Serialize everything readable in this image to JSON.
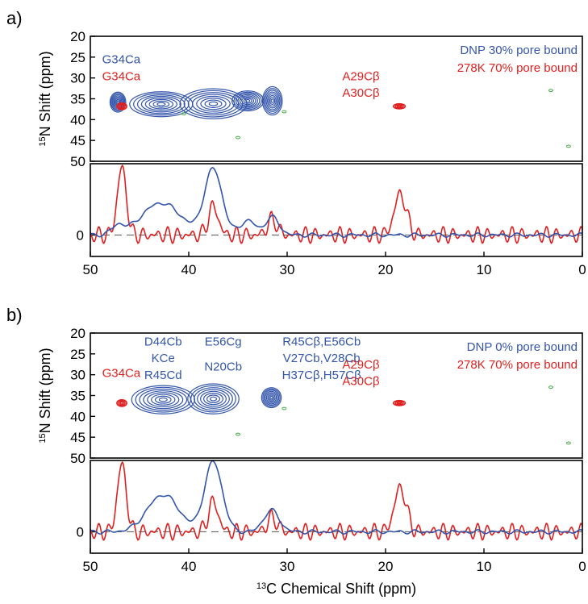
{
  "chart_data": [
    {
      "panel_label": "a)",
      "type": "heatmap",
      "subtype": "2D NMR contour spectrum",
      "xlabel": "",
      "ylabel": "15N Shift (ppm)",
      "ylabel_sup": "15",
      "ylabel_rest": "N Shift  (ppm)",
      "xlim": [
        50,
        0
      ],
      "ylim": [
        20,
        50
      ],
      "y_ticks": [
        "20",
        "25",
        "30",
        "35",
        "40",
        "45",
        "50"
      ],
      "legend": [
        "DNP 30% pore bound",
        "278K 70% pore bound"
      ],
      "legend_colors": [
        "#3355aa",
        "#e02020"
      ],
      "series": [
        {
          "name": "DNP 30% pore bound",
          "color": "#3355aa",
          "peaks": [
            {
              "x": 47.2,
              "y": 35.8,
              "w": 0.8,
              "h": 2.4
            },
            {
              "x": 42.8,
              "y": 36.3,
              "w": 3.2,
              "h": 3.0
            },
            {
              "x": 37.5,
              "y": 36.2,
              "w": 3.4,
              "h": 3.6
            },
            {
              "x": 34.0,
              "y": 35.5,
              "w": 1.6,
              "h": 2.4
            },
            {
              "x": 31.5,
              "y": 35.5,
              "w": 1.0,
              "h": 3.4
            }
          ]
        },
        {
          "name": "278K 70% pore bound",
          "color": "#e02020",
          "peaks": [
            {
              "x": 46.8,
              "y": 36.8,
              "w": 0.5,
              "h": 0.8
            },
            {
              "x": 18.6,
              "y": 36.8,
              "w": 0.6,
              "h": 0.6
            }
          ]
        }
      ],
      "annotations": [
        {
          "text": "G34Ca",
          "color": "#3355aa",
          "x": 48.8,
          "y": 26.5
        },
        {
          "text": "G34Ca",
          "color": "#e02020",
          "x": 48.8,
          "y": 30.5
        },
        {
          "text": "A29Cβ",
          "color": "#e02020",
          "x": 22.5,
          "y": 30.5
        },
        {
          "text": "A30Cβ",
          "color": "#e02020",
          "x": 22.5,
          "y": 34.5
        }
      ]
    },
    {
      "panel_label": "",
      "type": "line",
      "subtype": "1D projection",
      "xlabel": "",
      "ylabel": "",
      "xlim": [
        50,
        0
      ],
      "ylim": [
        -0.3,
        1.0
      ],
      "x_ticks": [
        "50",
        "40",
        "30",
        "20",
        "10",
        "0"
      ],
      "y_ticks": [
        "0"
      ],
      "series": [
        {
          "name": "",
          "color": "#e02020",
          "peaks": [
            [
              46.8,
              0.95,
              0.45
            ],
            [
              37.5,
              0.4,
              0.5
            ],
            [
              31.5,
              0.22,
              0.5
            ],
            [
              18.5,
              0.58,
              0.6
            ]
          ],
          "ripple": [
            0.12,
            0.5
          ]
        },
        {
          "name": "",
          "color": "#3355aa",
          "peaks": [
            [
              47.2,
              0.12,
              0.6
            ],
            [
              42.8,
              0.45,
              2.0
            ],
            [
              37.5,
              0.92,
              0.9
            ],
            [
              34.0,
              0.2,
              0.8
            ],
            [
              31.5,
              0.25,
              0.7
            ]
          ],
          "ripple": [
            0.03,
            0.8
          ]
        }
      ]
    },
    {
      "panel_label": "b)",
      "type": "heatmap",
      "subtype": "2D NMR contour spectrum",
      "xlabel": "",
      "ylabel": "15N Shift (ppm)",
      "ylabel_sup": "15",
      "ylabel_rest": "N Shift  (ppm)",
      "xlim": [
        50,
        0
      ],
      "ylim": [
        20,
        50
      ],
      "y_ticks": [
        "20",
        "25",
        "30",
        "35",
        "40",
        "45",
        "50"
      ],
      "legend": [
        "DNP 0% pore bound",
        "278K 70% pore bound"
      ],
      "legend_colors": [
        "#3355aa",
        "#e02020"
      ],
      "series": [
        {
          "name": "DNP 0% pore bound",
          "color": "#3355aa",
          "peaks": [
            {
              "x": 42.6,
              "y": 36.0,
              "w": 3.2,
              "h": 3.4
            },
            {
              "x": 37.5,
              "y": 35.8,
              "w": 2.6,
              "h": 3.6
            },
            {
              "x": 31.6,
              "y": 35.5,
              "w": 1.0,
              "h": 2.4
            }
          ]
        },
        {
          "name": "278K 70% pore bound",
          "color": "#e02020",
          "peaks": [
            {
              "x": 46.8,
              "y": 36.8,
              "w": 0.5,
              "h": 0.8
            },
            {
              "x": 18.6,
              "y": 36.8,
              "w": 0.6,
              "h": 0.6
            }
          ]
        }
      ],
      "annotations": [
        {
          "text": "D44Cb",
          "color": "#3355aa",
          "x": 42.6,
          "y": 23.0
        },
        {
          "text": "KCe",
          "color": "#3355aa",
          "x": 42.6,
          "y": 27.0
        },
        {
          "text": "R45Cd",
          "color": "#3355aa",
          "x": 42.6,
          "y": 31.0
        },
        {
          "text": "E56Cg",
          "color": "#3355aa",
          "x": 36.5,
          "y": 23.0
        },
        {
          "text": "N20Cb",
          "color": "#3355aa",
          "x": 36.5,
          "y": 29.0
        },
        {
          "text": "R45Cβ,E56Cb",
          "color": "#3355aa",
          "x": 26.5,
          "y": 23.0
        },
        {
          "text": "V27Cb,V28Cb",
          "color": "#3355aa",
          "x": 26.5,
          "y": 27.0
        },
        {
          "text": "H37Cβ,H57Cβ",
          "color": "#3355aa",
          "x": 26.5,
          "y": 31.0
        },
        {
          "text": "G34Ca",
          "color": "#e02020",
          "x": 48.8,
          "y": 30.5
        },
        {
          "text": "A29Cβ",
          "color": "#e02020",
          "x": 22.5,
          "y": 28.5
        },
        {
          "text": "A30Cβ",
          "color": "#e02020",
          "x": 22.5,
          "y": 32.5
        }
      ]
    },
    {
      "panel_label": "",
      "type": "line",
      "subtype": "1D projection",
      "xlabel": "13C Chemical Shift (ppm)",
      "xlabel_sup": "13",
      "xlabel_rest": "C Chemical Shift  (ppm)",
      "ylabel": "",
      "xlim": [
        50,
        0
      ],
      "ylim": [
        -0.3,
        1.0
      ],
      "x_ticks": [
        "50",
        "40",
        "30",
        "20",
        "10",
        "0"
      ],
      "y_ticks": [
        "0"
      ],
      "series": [
        {
          "name": "",
          "color": "#e02020",
          "peaks": [
            [
              46.8,
              0.95,
              0.45
            ],
            [
              37.5,
              0.42,
              0.5
            ],
            [
              31.5,
              0.2,
              0.5
            ],
            [
              18.5,
              0.62,
              0.6
            ]
          ],
          "ripple": [
            0.12,
            0.5
          ]
        },
        {
          "name": "",
          "color": "#3355aa",
          "peaks": [
            [
              42.6,
              0.52,
              1.6
            ],
            [
              37.5,
              0.98,
              0.9
            ],
            [
              31.6,
              0.3,
              0.8
            ]
          ],
          "ripple": [
            0.03,
            0.8
          ]
        }
      ]
    }
  ]
}
